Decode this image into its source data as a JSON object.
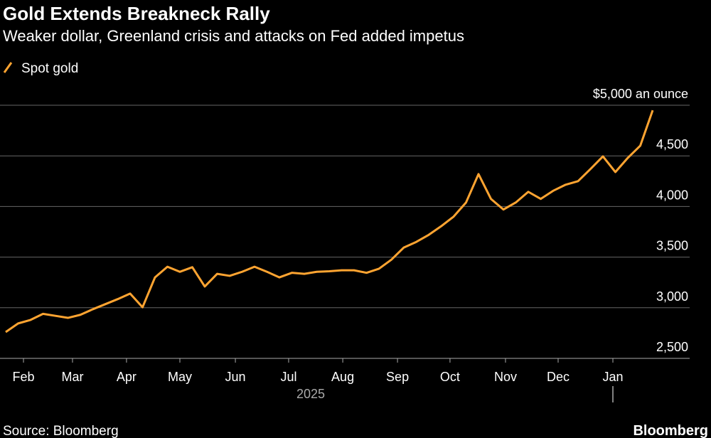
{
  "chart_data": {
    "type": "line",
    "title": "Gold Extends Breakneck Rally",
    "subtitle": "Weaker dollar, Greenland crisis and attacks on Fed added impetus",
    "source": "Source: Bloomberg",
    "brand": "Bloomberg",
    "year_label": "2025",
    "series": [
      {
        "name": "Spot gold",
        "color": "#ffa431",
        "values": [
          2760,
          2845,
          2880,
          2940,
          2920,
          2900,
          2930,
          2985,
          3035,
          3085,
          3140,
          3005,
          3300,
          3405,
          3355,
          3400,
          3210,
          3335,
          3315,
          3355,
          3405,
          3355,
          3300,
          3345,
          3335,
          3355,
          3360,
          3370,
          3370,
          3345,
          3385,
          3475,
          3595,
          3650,
          3720,
          3805,
          3900,
          4040,
          4320,
          4075,
          3970,
          4040,
          4145,
          4075,
          4155,
          4215,
          4250,
          4370,
          4495,
          4340,
          4480,
          4600,
          4950
        ]
      }
    ],
    "xlim": [
      0,
      52
    ],
    "xticks": [
      {
        "value": 1.43,
        "label": "Feb"
      },
      {
        "value": 5.37,
        "label": "Mar"
      },
      {
        "value": 9.71,
        "label": "Apr"
      },
      {
        "value": 14.0,
        "label": "May"
      },
      {
        "value": 18.46,
        "label": "Jun"
      },
      {
        "value": 22.74,
        "label": "Jul"
      },
      {
        "value": 27.09,
        "label": "Aug"
      },
      {
        "value": 31.49,
        "label": "Sep"
      },
      {
        "value": 35.71,
        "label": "Oct"
      },
      {
        "value": 40.17,
        "label": "Nov"
      },
      {
        "value": 44.4,
        "label": "Dec"
      },
      {
        "value": 48.8,
        "label": "Jan"
      }
    ],
    "ylim": [
      2500,
      5000
    ],
    "yticks": [
      {
        "value": 2500,
        "label": "2,500"
      },
      {
        "value": 3000,
        "label": "3,000"
      },
      {
        "value": 3500,
        "label": "3,500"
      },
      {
        "value": 4000,
        "label": "4,000"
      },
      {
        "value": 4500,
        "label": "4,500"
      },
      {
        "value": 5000,
        "label": "$5,000 an ounce"
      }
    ],
    "grid": true
  }
}
